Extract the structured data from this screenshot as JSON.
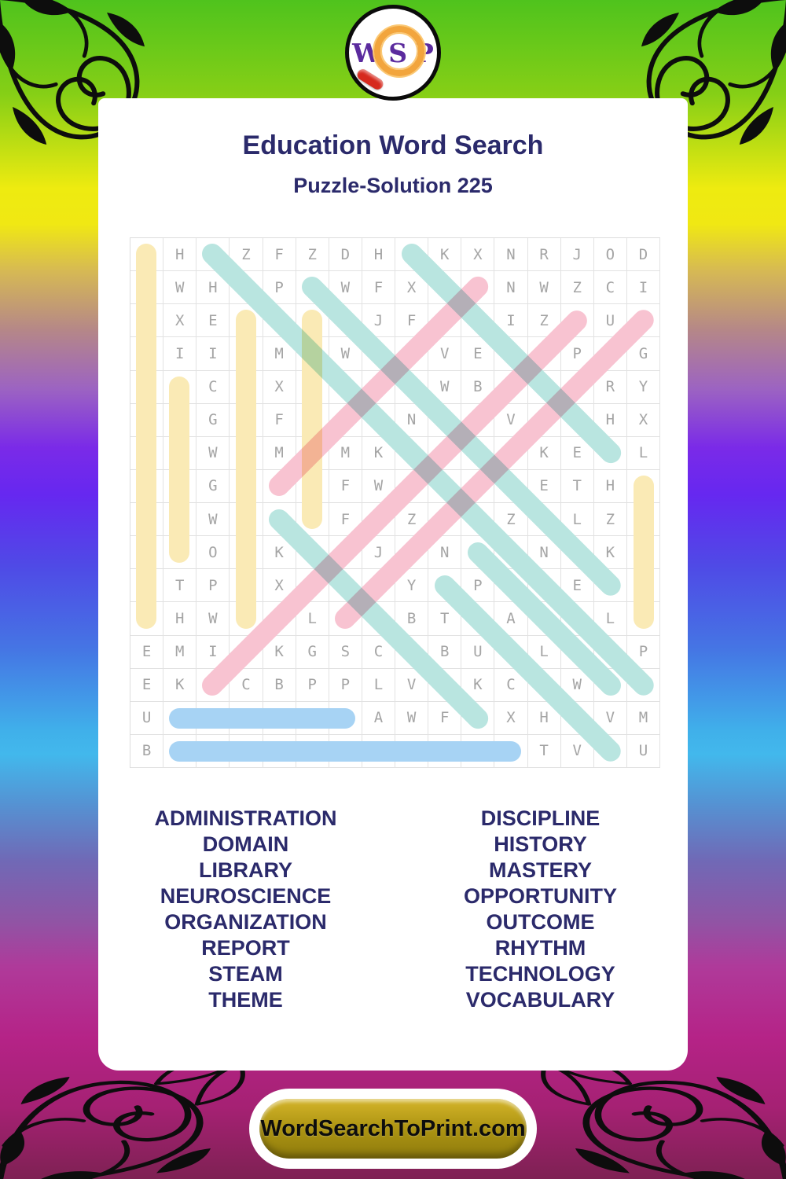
{
  "logo": {
    "letters": [
      "W",
      "S",
      "P"
    ]
  },
  "header": {
    "title": "Education Word Search",
    "subtitle": "Puzzle-Solution 225"
  },
  "puzzle": {
    "rows": [
      "NHAZFZDHHKXNRJOD",
      "EWHDPTWFXIYNWZCI",
      "UXEVMLEJFRSIZNUE",
      "RIIOMIWCEVETOPNG",
      "ORCCXBNTHWBIOIRY",
      "SEGAFRSINNTVLRHX",
      "CPWBMAMKSAOPKEYL",
      "IOGUMRFWZTILETHS",
      "ERWLOYFIZCRZOLZT",
      "NTOAKUNJSNTANGKE",
      "CTPRXATIYRPHTEYA",
      "EHWYGLDCBTHAEILM",
      "EMIRKGSCOBUYLMOP",
      "EKOCBPPLVMKCTWEN",
      "UDOMAINAWFEXHHVM",
      "BOPPORTUNITYTVMU"
    ],
    "solutions": [
      {
        "word": "NEUROSCIENCE",
        "start": [
          1,
          1
        ],
        "end": [
          12,
          1
        ],
        "color": "yellow"
      },
      {
        "word": "REPORT",
        "start": [
          5,
          2
        ],
        "end": [
          10,
          2
        ],
        "color": "yellow"
      },
      {
        "word": "VOCABULARY",
        "start": [
          3,
          4
        ],
        "end": [
          12,
          4
        ],
        "color": "yellow"
      },
      {
        "word": "LIBRARY",
        "start": [
          3,
          6
        ],
        "end": [
          9,
          6
        ],
        "color": "yellow"
      },
      {
        "word": "STEAM",
        "start": [
          8,
          16
        ],
        "end": [
          12,
          16
        ],
        "color": "yellow"
      },
      {
        "word": "MASTERY",
        "start": [
          8,
          5
        ],
        "end": [
          2,
          11
        ],
        "color": "pink"
      },
      {
        "word": "DISCIPLINE",
        "start": [
          12,
          7
        ],
        "end": [
          3,
          16
        ],
        "color": "pink"
      },
      {
        "word": "ORGANIZATION",
        "start": [
          14,
          3
        ],
        "end": [
          3,
          14
        ],
        "color": "pink"
      },
      {
        "word": "ADMINISTRATION",
        "start": [
          1,
          3
        ],
        "end": [
          14,
          16
        ],
        "color": "teal"
      },
      {
        "word": "HISTORY",
        "start": [
          1,
          9
        ],
        "end": [
          7,
          15
        ],
        "color": "teal"
      },
      {
        "word": "TECHNOLOGY",
        "start": [
          2,
          6
        ],
        "end": [
          11,
          15
        ],
        "color": "teal"
      },
      {
        "word": "OUTCOME",
        "start": [
          9,
          5
        ],
        "end": [
          15,
          11
        ],
        "color": "teal"
      },
      {
        "word": "THEME",
        "start": [
          10,
          11
        ],
        "end": [
          14,
          15
        ],
        "color": "teal"
      },
      {
        "word": "RHYTHM",
        "start": [
          11,
          10
        ],
        "end": [
          16,
          15
        ],
        "color": "teal"
      },
      {
        "word": "DOMAIN",
        "start": [
          15,
          2
        ],
        "end": [
          15,
          7
        ],
        "color": "blue"
      },
      {
        "word": "OPPORTUNITY",
        "start": [
          16,
          2
        ],
        "end": [
          16,
          12
        ],
        "color": "blue"
      }
    ],
    "highlight_colors": {
      "yellow": "#faeab5",
      "teal": "#b9e5e0",
      "pink": "#f8c3d1",
      "blue": "#a7d3f4"
    }
  },
  "word_list": {
    "left": [
      "ADMINISTRATION",
      "DOMAIN",
      "LIBRARY",
      "NEUROSCIENCE",
      "ORGANIZATION",
      "REPORT",
      "STEAM",
      "THEME"
    ],
    "right": [
      "DISCIPLINE",
      "HISTORY",
      "MASTERY",
      "OPPORTUNITY",
      "OUTCOME",
      "RHYTHM",
      "TECHNOLOGY",
      "VOCABULARY"
    ]
  },
  "footer": {
    "button_label": "WordSearchToPrint.com"
  },
  "theme": {
    "title_color": "#2b2a6b"
  }
}
